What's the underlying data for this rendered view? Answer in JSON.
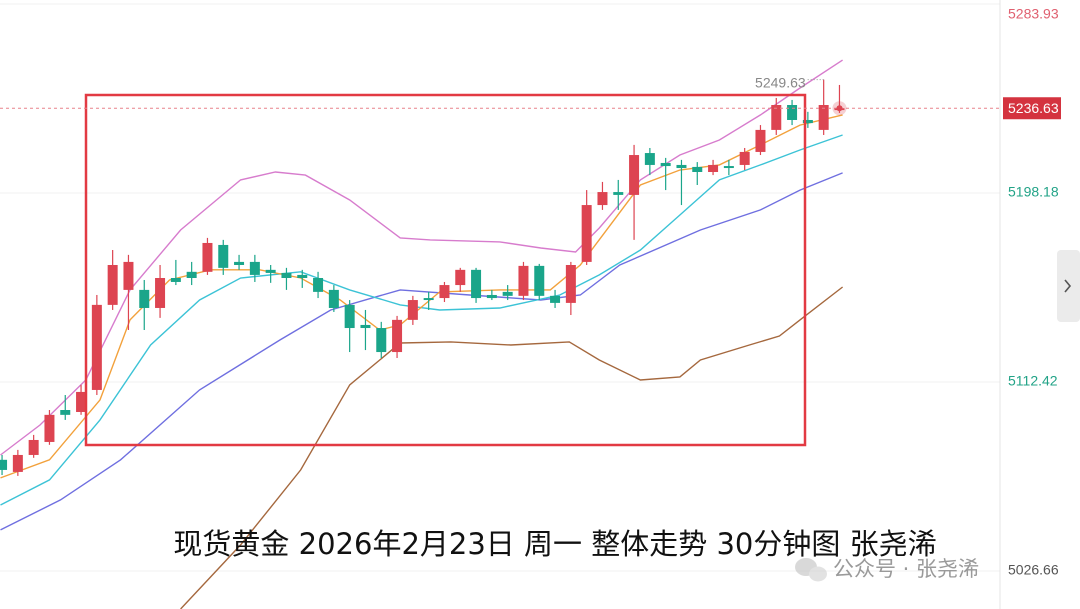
{
  "chart_data": {
    "type": "candlestick",
    "title": "现货黄金 2026年2月23日 周一 整体走势 30分钟图 张尧浠",
    "watermark": "公众号 · 张尧浠",
    "up_color": "#dd4451",
    "down_color": "#1aa58a",
    "x": [
      0,
      1,
      2,
      3,
      4,
      5,
      6,
      7,
      8,
      9,
      10,
      11,
      12,
      13,
      14,
      15,
      16,
      17,
      18,
      19,
      20,
      21,
      22,
      23,
      24,
      25,
      26,
      27,
      28,
      29,
      30,
      31,
      32,
      33,
      34,
      35,
      36,
      37,
      38,
      39,
      40,
      41,
      42,
      43,
      44,
      45,
      46,
      47,
      48,
      49,
      50,
      51,
      52,
      53
    ],
    "open": [
      5077.1,
      5071.6,
      5079.3,
      5085.2,
      5099.7,
      5098.8,
      5108.8,
      5147.4,
      5154.2,
      5154.2,
      5146.0,
      5159.6,
      5162.4,
      5162.4,
      5174.6,
      5166.9,
      5166.9,
      5163.3,
      5161.9,
      5161.0,
      5159.6,
      5154.2,
      5147.4,
      5138.3,
      5136.9,
      5126.0,
      5140.6,
      5150.5,
      5150.5,
      5156.4,
      5163.3,
      5151.9,
      5153.3,
      5151.5,
      5165.1,
      5151.5,
      5148.3,
      5166.9,
      5192.7,
      5198.6,
      5197.3,
      5216.3,
      5211.8,
      5210.9,
      5210.0,
      5207.7,
      5210.4,
      5210.9,
      5216.8,
      5226.8,
      5238.1,
      5231.3,
      5226.8,
      5235.8
    ],
    "high": [
      5079.3,
      5081.6,
      5088.4,
      5099.7,
      5106.5,
      5111.1,
      5151.9,
      5172.3,
      5170.1,
      5158.7,
      5165.5,
      5167.8,
      5166.9,
      5177.8,
      5176.9,
      5170.1,
      5170.1,
      5165.5,
      5164.2,
      5163.3,
      5162.4,
      5156.4,
      5149.6,
      5145.1,
      5139.7,
      5142.4,
      5151.5,
      5153.3,
      5157.8,
      5164.2,
      5164.2,
      5154.2,
      5156.4,
      5166.9,
      5166.0,
      5154.2,
      5166.9,
      5199.5,
      5203.2,
      5204.1,
      5220.0,
      5218.6,
      5214.1,
      5213.2,
      5212.2,
      5213.2,
      5213.2,
      5218.6,
      5229.0,
      5241.3,
      5240.4,
      5235.0,
      5249.63,
      5247.2
    ],
    "low": [
      5070.2,
      5069.8,
      5078.0,
      5083.9,
      5095.2,
      5097.5,
      5106.5,
      5145.1,
      5136.0,
      5136.0,
      5141.5,
      5156.4,
      5156.4,
      5161.0,
      5161.0,
      5163.3,
      5157.8,
      5157.4,
      5154.2,
      5155.1,
      5150.5,
      5144.2,
      5126.0,
      5126.9,
      5123.3,
      5123.3,
      5138.3,
      5145.1,
      5148.7,
      5153.3,
      5148.3,
      5149.6,
      5149.6,
      5149.6,
      5149.6,
      5146.0,
      5142.8,
      5165.5,
      5190.5,
      5190.5,
      5176.9,
      5206.3,
      5199.5,
      5192.7,
      5201.8,
      5206.3,
      5206.3,
      5208.6,
      5215.4,
      5224.5,
      5229.0,
      5227.7,
      5224.5,
      5234.5
    ],
    "close": [
      5072.5,
      5079.3,
      5086.1,
      5097.5,
      5097.5,
      5107.9,
      5147.4,
      5165.5,
      5166.9,
      5146.0,
      5159.6,
      5157.8,
      5159.6,
      5175.5,
      5164.2,
      5165.5,
      5161.0,
      5161.9,
      5159.6,
      5159.6,
      5153.3,
      5146.0,
      5136.9,
      5136.9,
      5126.0,
      5140.6,
      5149.6,
      5149.6,
      5156.4,
      5163.3,
      5150.5,
      5150.5,
      5151.5,
      5165.1,
      5151.5,
      5148.3,
      5165.5,
      5192.7,
      5198.6,
      5197.3,
      5215.4,
      5210.9,
      5210.4,
      5209.5,
      5207.7,
      5210.9,
      5209.5,
      5216.8,
      5226.8,
      5238.1,
      5231.3,
      5229.9,
      5238.1,
      5236.63
    ],
    "lines": [
      {
        "color": "#d77ccd",
        "x": [
          -0.1,
          2.4,
          5.3,
          8.1,
          11.3,
          15.1,
          17.3,
          19.2,
          22.0,
          25.2,
          27.1,
          31.5,
          34.1,
          36.3,
          37.8,
          40.4,
          42.9,
          45.4,
          48.0,
          50.5,
          53.2
        ],
        "values": [
          5079.3,
          5092.9,
          5113.3,
          5154.2,
          5181.4,
          5204.1,
          5207.7,
          5206.3,
          5195.0,
          5177.8,
          5176.9,
          5176.0,
          5173.2,
          5171.4,
          5182.3,
          5204.1,
          5215.4,
          5222.2,
          5233.6,
          5245.8,
          5258.5
        ]
      },
      {
        "color": "#a5683e",
        "x": [
          11.3,
          15.1,
          18.9,
          22.0,
          25.2,
          28.4,
          32.2,
          35.9,
          37.8,
          40.4,
          42.9,
          44.2,
          47.3,
          49.2,
          50.5,
          53.2
        ],
        "values": [
          5009.4,
          5038.5,
          5072.5,
          5111.1,
          5130.1,
          5130.6,
          5129.2,
          5130.6,
          5122.4,
          5113.3,
          5114.7,
          5122.4,
          5129.2,
          5133.3,
          5140.6,
          5155.5
        ]
      },
      {
        "color": "#6f6fe0",
        "x": [
          -0.1,
          3.7,
          7.5,
          12.5,
          17.6,
          20.8,
          25.2,
          29.6,
          34.1,
          36.6,
          39.1,
          44.2,
          48.0,
          50.5,
          53.2
        ],
        "values": [
          5045.3,
          5058.9,
          5077.1,
          5108.8,
          5131.5,
          5145.1,
          5154.2,
          5151.9,
          5149.6,
          5151.9,
          5165.5,
          5181.4,
          5190.5,
          5199.5,
          5207.3
        ]
      },
      {
        "color": "#3cc3d6",
        "x": [
          -0.1,
          3.0,
          6.2,
          9.4,
          12.5,
          15.1,
          18.9,
          22.0,
          25.2,
          27.7,
          31.5,
          35.3,
          37.8,
          40.4,
          42.9,
          45.4,
          48.0,
          50.5,
          53.2
        ],
        "values": [
          5056.6,
          5068.0,
          5095.2,
          5129.2,
          5149.6,
          5159.6,
          5162.4,
          5154.2,
          5147.4,
          5145.1,
          5146.0,
          5151.9,
          5161.0,
          5172.3,
          5188.2,
          5204.1,
          5210.9,
          5217.7,
          5224.5
        ]
      },
      {
        "color": "#f2a13c",
        "x": [
          -0.1,
          3.0,
          6.2,
          8.1,
          10.6,
          13.2,
          16.3,
          18.9,
          21.4,
          23.9,
          25.2,
          27.7,
          31.5,
          34.7,
          36.6,
          38.5,
          40.4,
          42.9,
          45.4,
          48.0,
          50.5,
          53.2
        ],
        "values": [
          5068.9,
          5077.1,
          5104.3,
          5140.6,
          5158.7,
          5163.3,
          5163.3,
          5159.6,
          5149.6,
          5136.0,
          5138.3,
          5153.3,
          5154.2,
          5154.2,
          5165.5,
          5183.7,
          5201.8,
          5208.6,
          5210.9,
          5220.0,
          5229.0,
          5233.6
        ]
      }
    ],
    "last_price": 5236.63,
    "high_label": 5249.63,
    "xlim": [
      -0.13,
      63.16
    ],
    "ylim": [
      5009.4,
      5285.75
    ],
    "yticks": [
      5283.93,
      5198.18,
      5112.42,
      5026.66
    ],
    "grid": true
  }
}
